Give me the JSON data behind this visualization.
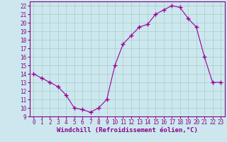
{
  "x": [
    0,
    1,
    2,
    3,
    4,
    5,
    6,
    7,
    8,
    9,
    10,
    11,
    12,
    13,
    14,
    15,
    16,
    17,
    18,
    19,
    20,
    21,
    22,
    23
  ],
  "y": [
    14,
    13.5,
    13,
    12.5,
    11.5,
    10,
    9.8,
    9.5,
    10,
    11,
    15,
    17.5,
    18.5,
    19.5,
    19.8,
    21,
    21.5,
    22,
    21.8,
    20.5,
    19.5,
    16,
    13,
    13
  ],
  "line_color": "#990099",
  "marker": "+",
  "marker_size": 4,
  "marker_lw": 1.0,
  "line_width": 0.8,
  "bg_color": "#cce8ee",
  "grid_color": "#aacccc",
  "xlabel": "Windchill (Refroidissement éolien,°C)",
  "xlim": [
    -0.5,
    23.5
  ],
  "ylim": [
    9,
    22.5
  ],
  "yticks": [
    9,
    10,
    11,
    12,
    13,
    14,
    15,
    16,
    17,
    18,
    19,
    20,
    21,
    22
  ],
  "xticks": [
    0,
    1,
    2,
    3,
    4,
    5,
    6,
    7,
    8,
    9,
    10,
    11,
    12,
    13,
    14,
    15,
    16,
    17,
    18,
    19,
    20,
    21,
    22,
    23
  ],
  "tick_label_size": 5.5,
  "xlabel_size": 6.5,
  "label_color": "#880088",
  "spine_color": "#880088"
}
